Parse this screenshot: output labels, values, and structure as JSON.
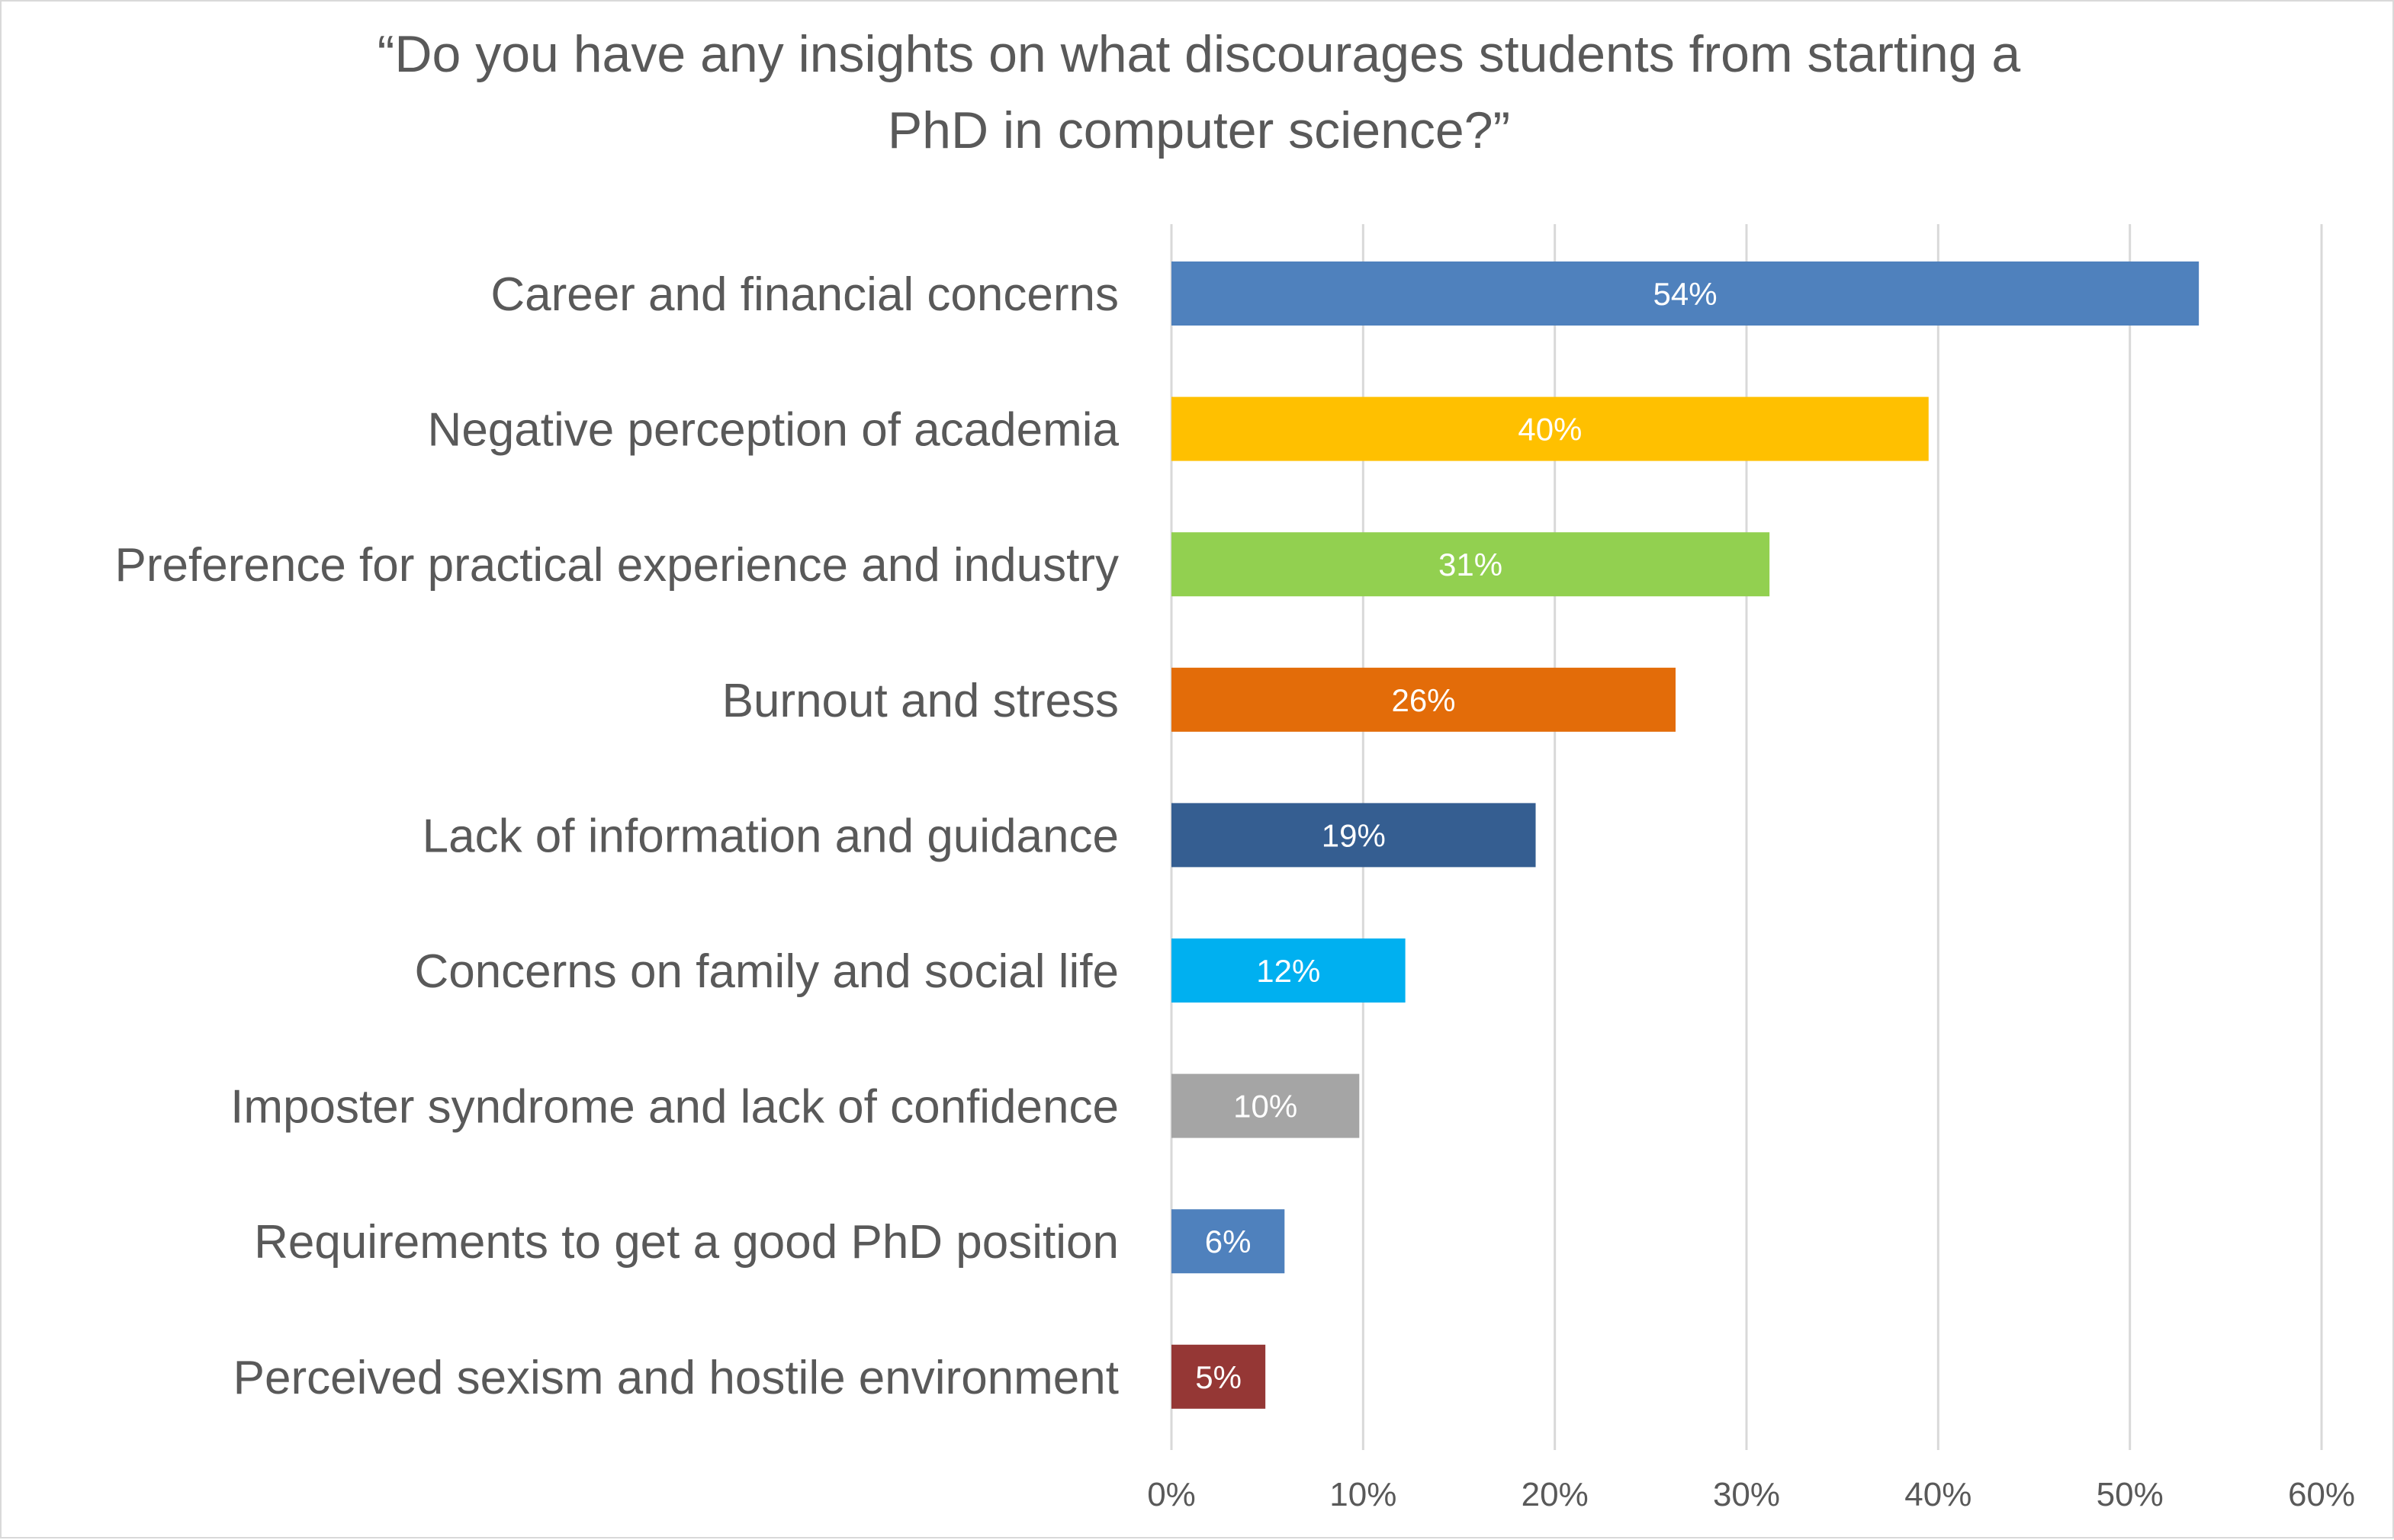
{
  "chart_data": {
    "type": "bar",
    "orientation": "horizontal",
    "title_lines": [
      "“Do you have any insights on what discourages students from starting a",
      "PhD in computer science?”"
    ],
    "categories": [
      "Career and financial concerns",
      "Negative perception of academia",
      "Preference for practical experience and industry",
      "Burnout and stress",
      "Lack of information and guidance",
      "Concerns on family and social life",
      "Imposter syndrome and lack of confidence",
      "Requirements to get a good PhD position",
      "Perceived sexism and hostile environment"
    ],
    "values": [
      53.6,
      39.5,
      31.2,
      26.3,
      19.0,
      12.2,
      9.8,
      5.9,
      4.9
    ],
    "data_labels": [
      "54%",
      "40%",
      "31%",
      "26%",
      "19%",
      "12%",
      "10%",
      "6%",
      "5%"
    ],
    "colors": [
      "#4F81BD",
      "#FFC000",
      "#92D050",
      "#E36C09",
      "#355E91",
      "#00B0F0",
      "#A5A5A5",
      "#4F81BD",
      "#953735"
    ],
    "xlim": [
      0,
      60
    ],
    "xticks": [
      0,
      10,
      20,
      30,
      40,
      50,
      60
    ],
    "xtick_labels": [
      "0%",
      "10%",
      "20%",
      "30%",
      "40%",
      "50%",
      "60%"
    ],
    "grid": "vertical",
    "legend": "none"
  }
}
